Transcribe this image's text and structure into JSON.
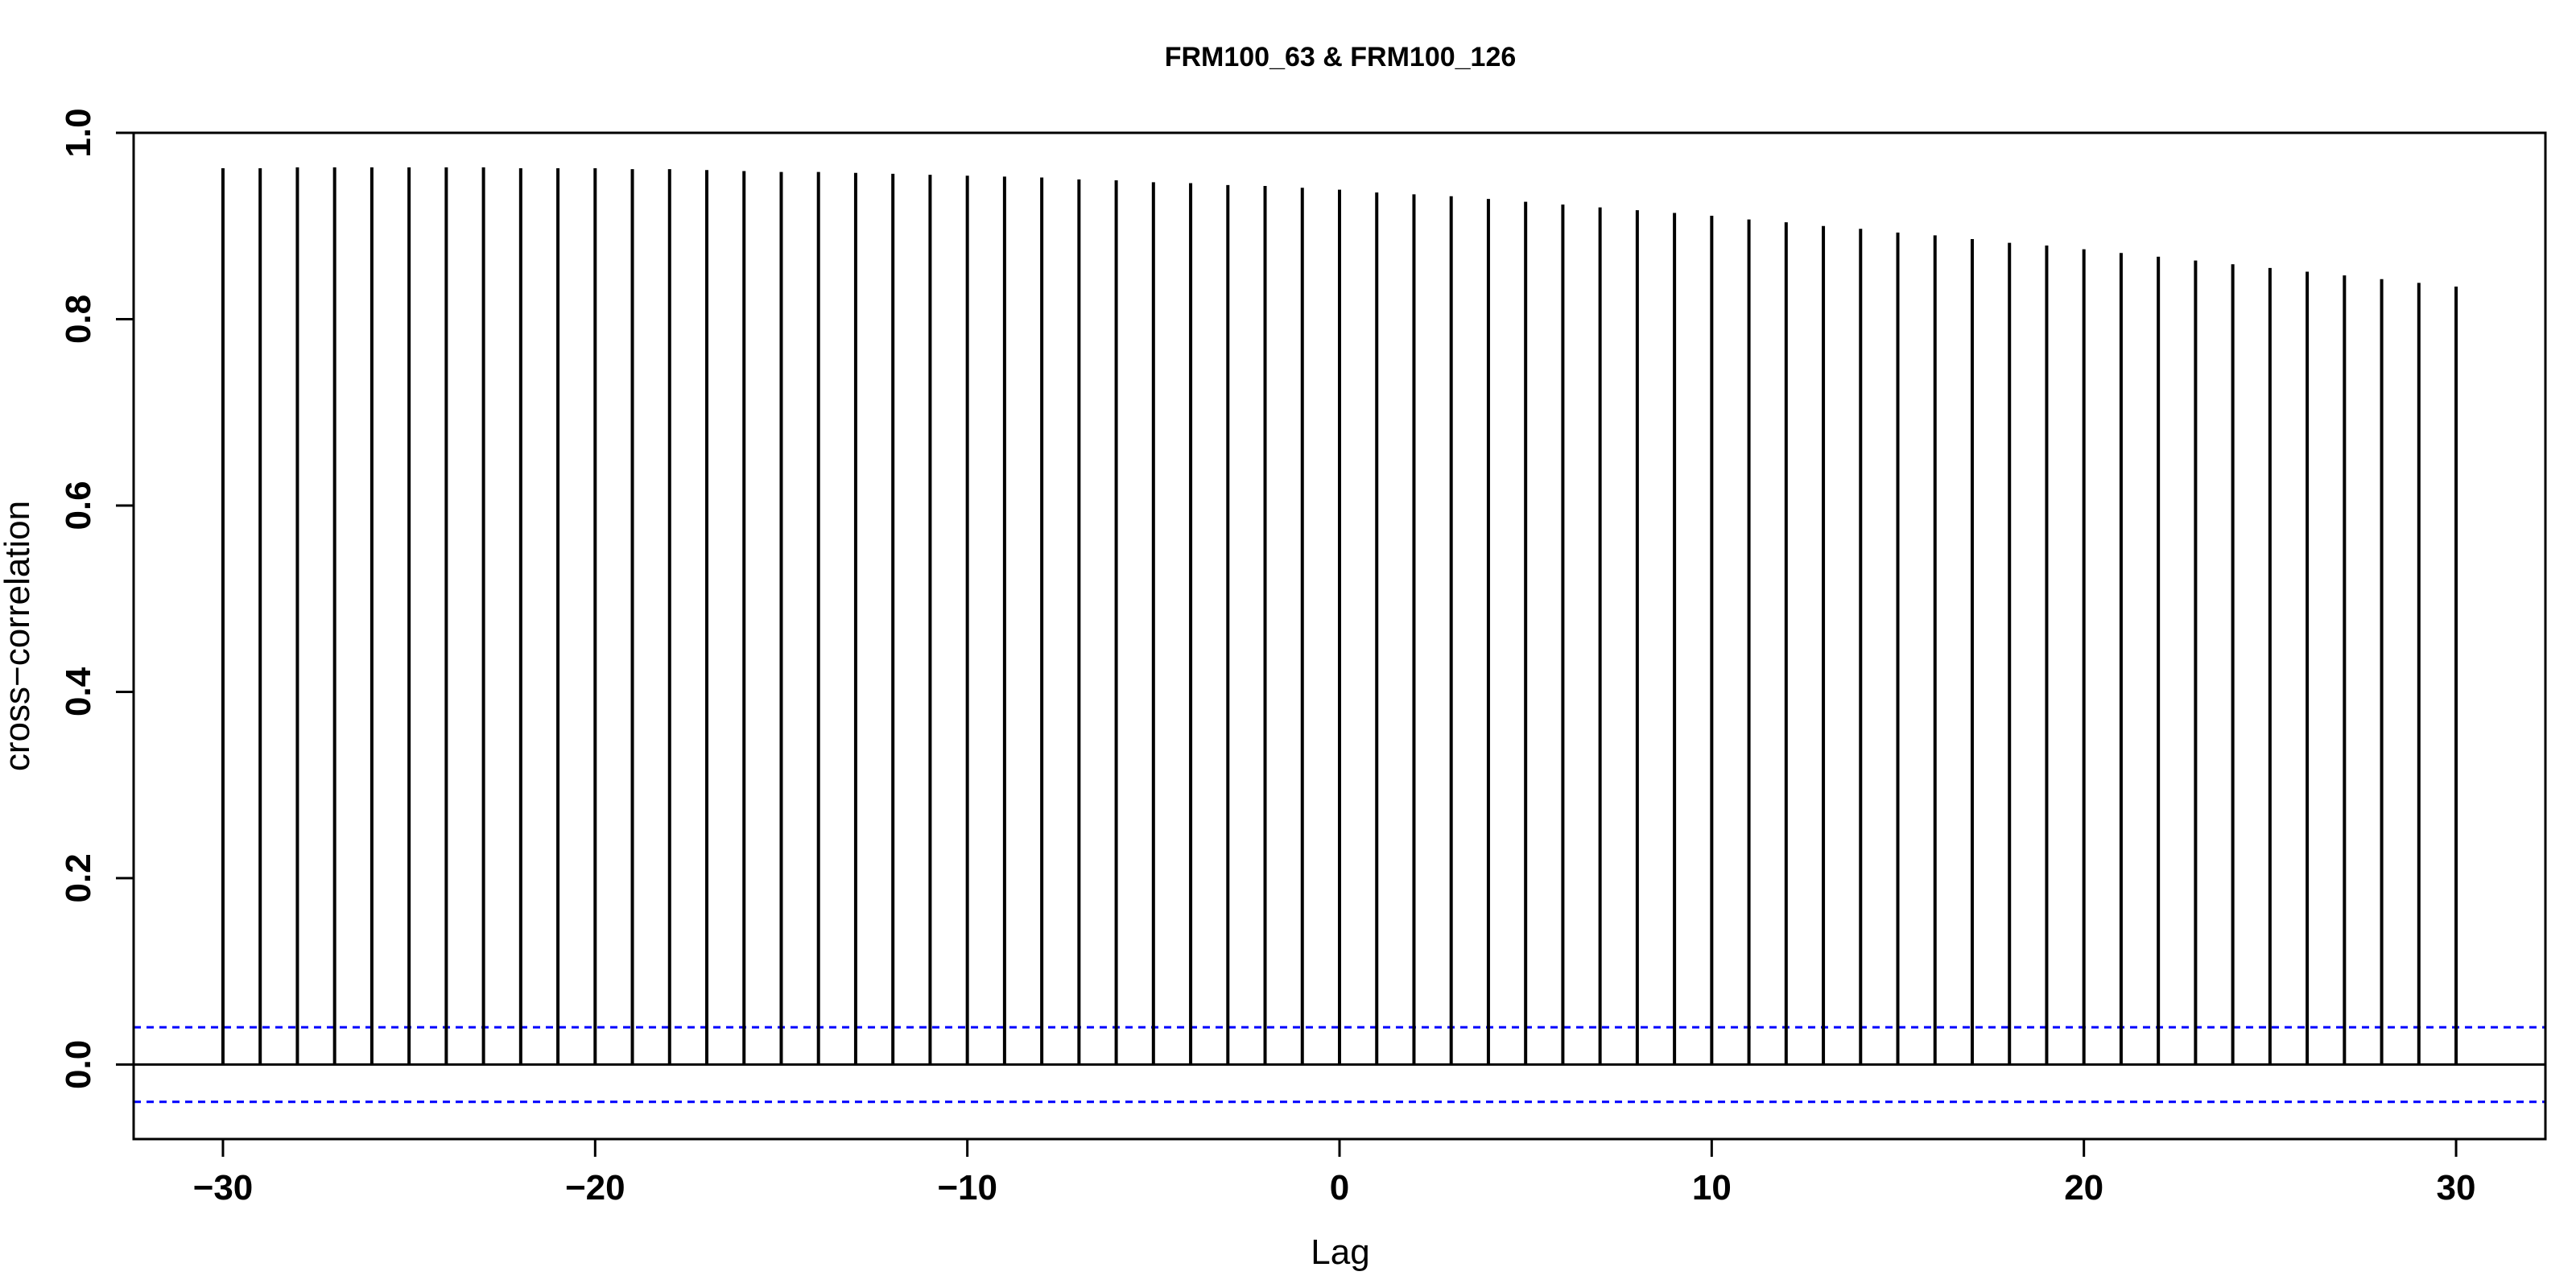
{
  "chart_data": {
    "type": "bar",
    "title": "FRM100_63 & FRM100_126",
    "xlabel": "Lag",
    "ylabel": "cross−correlation",
    "xlim": [
      -32.4,
      32.4
    ],
    "ylim": [
      -0.08,
      1.0
    ],
    "x_ticks": [
      -30,
      -20,
      -10,
      0,
      10,
      20,
      30
    ],
    "x_tick_labels": [
      "−30",
      "−20",
      "−10",
      "0",
      "10",
      "20",
      "30"
    ],
    "y_ticks": [
      0.0,
      0.2,
      0.4,
      0.6,
      0.8,
      1.0
    ],
    "y_tick_labels": [
      "0.0",
      "0.2",
      "0.4",
      "0.6",
      "0.8",
      "1.0"
    ],
    "confidence_bounds": [
      0.04,
      -0.04
    ],
    "grid": false,
    "colors": {
      "bars": "#000000",
      "confidence": "#0000ff",
      "zero_line": "#000000"
    },
    "x": [
      -30,
      -29,
      -28,
      -27,
      -26,
      -25,
      -24,
      -23,
      -22,
      -21,
      -20,
      -19,
      -18,
      -17,
      -16,
      -15,
      -14,
      -13,
      -12,
      -11,
      -10,
      -9,
      -8,
      -7,
      -6,
      -5,
      -4,
      -3,
      -2,
      -1,
      0,
      1,
      2,
      3,
      4,
      5,
      6,
      7,
      8,
      9,
      10,
      11,
      12,
      13,
      14,
      15,
      16,
      17,
      18,
      19,
      20,
      21,
      22,
      23,
      24,
      25,
      26,
      27,
      28,
      29,
      30
    ],
    "values": [
      0.962,
      0.962,
      0.963,
      0.963,
      0.963,
      0.963,
      0.963,
      0.963,
      0.962,
      0.962,
      0.962,
      0.961,
      0.961,
      0.96,
      0.959,
      0.958,
      0.958,
      0.957,
      0.956,
      0.955,
      0.954,
      0.953,
      0.952,
      0.95,
      0.949,
      0.947,
      0.946,
      0.944,
      0.943,
      0.941,
      0.939,
      0.936,
      0.934,
      0.932,
      0.929,
      0.926,
      0.923,
      0.92,
      0.917,
      0.914,
      0.911,
      0.907,
      0.904,
      0.9,
      0.897,
      0.893,
      0.89,
      0.886,
      0.882,
      0.879,
      0.875,
      0.871,
      0.867,
      0.863,
      0.859,
      0.855,
      0.851,
      0.847,
      0.843,
      0.839,
      0.835
    ]
  }
}
